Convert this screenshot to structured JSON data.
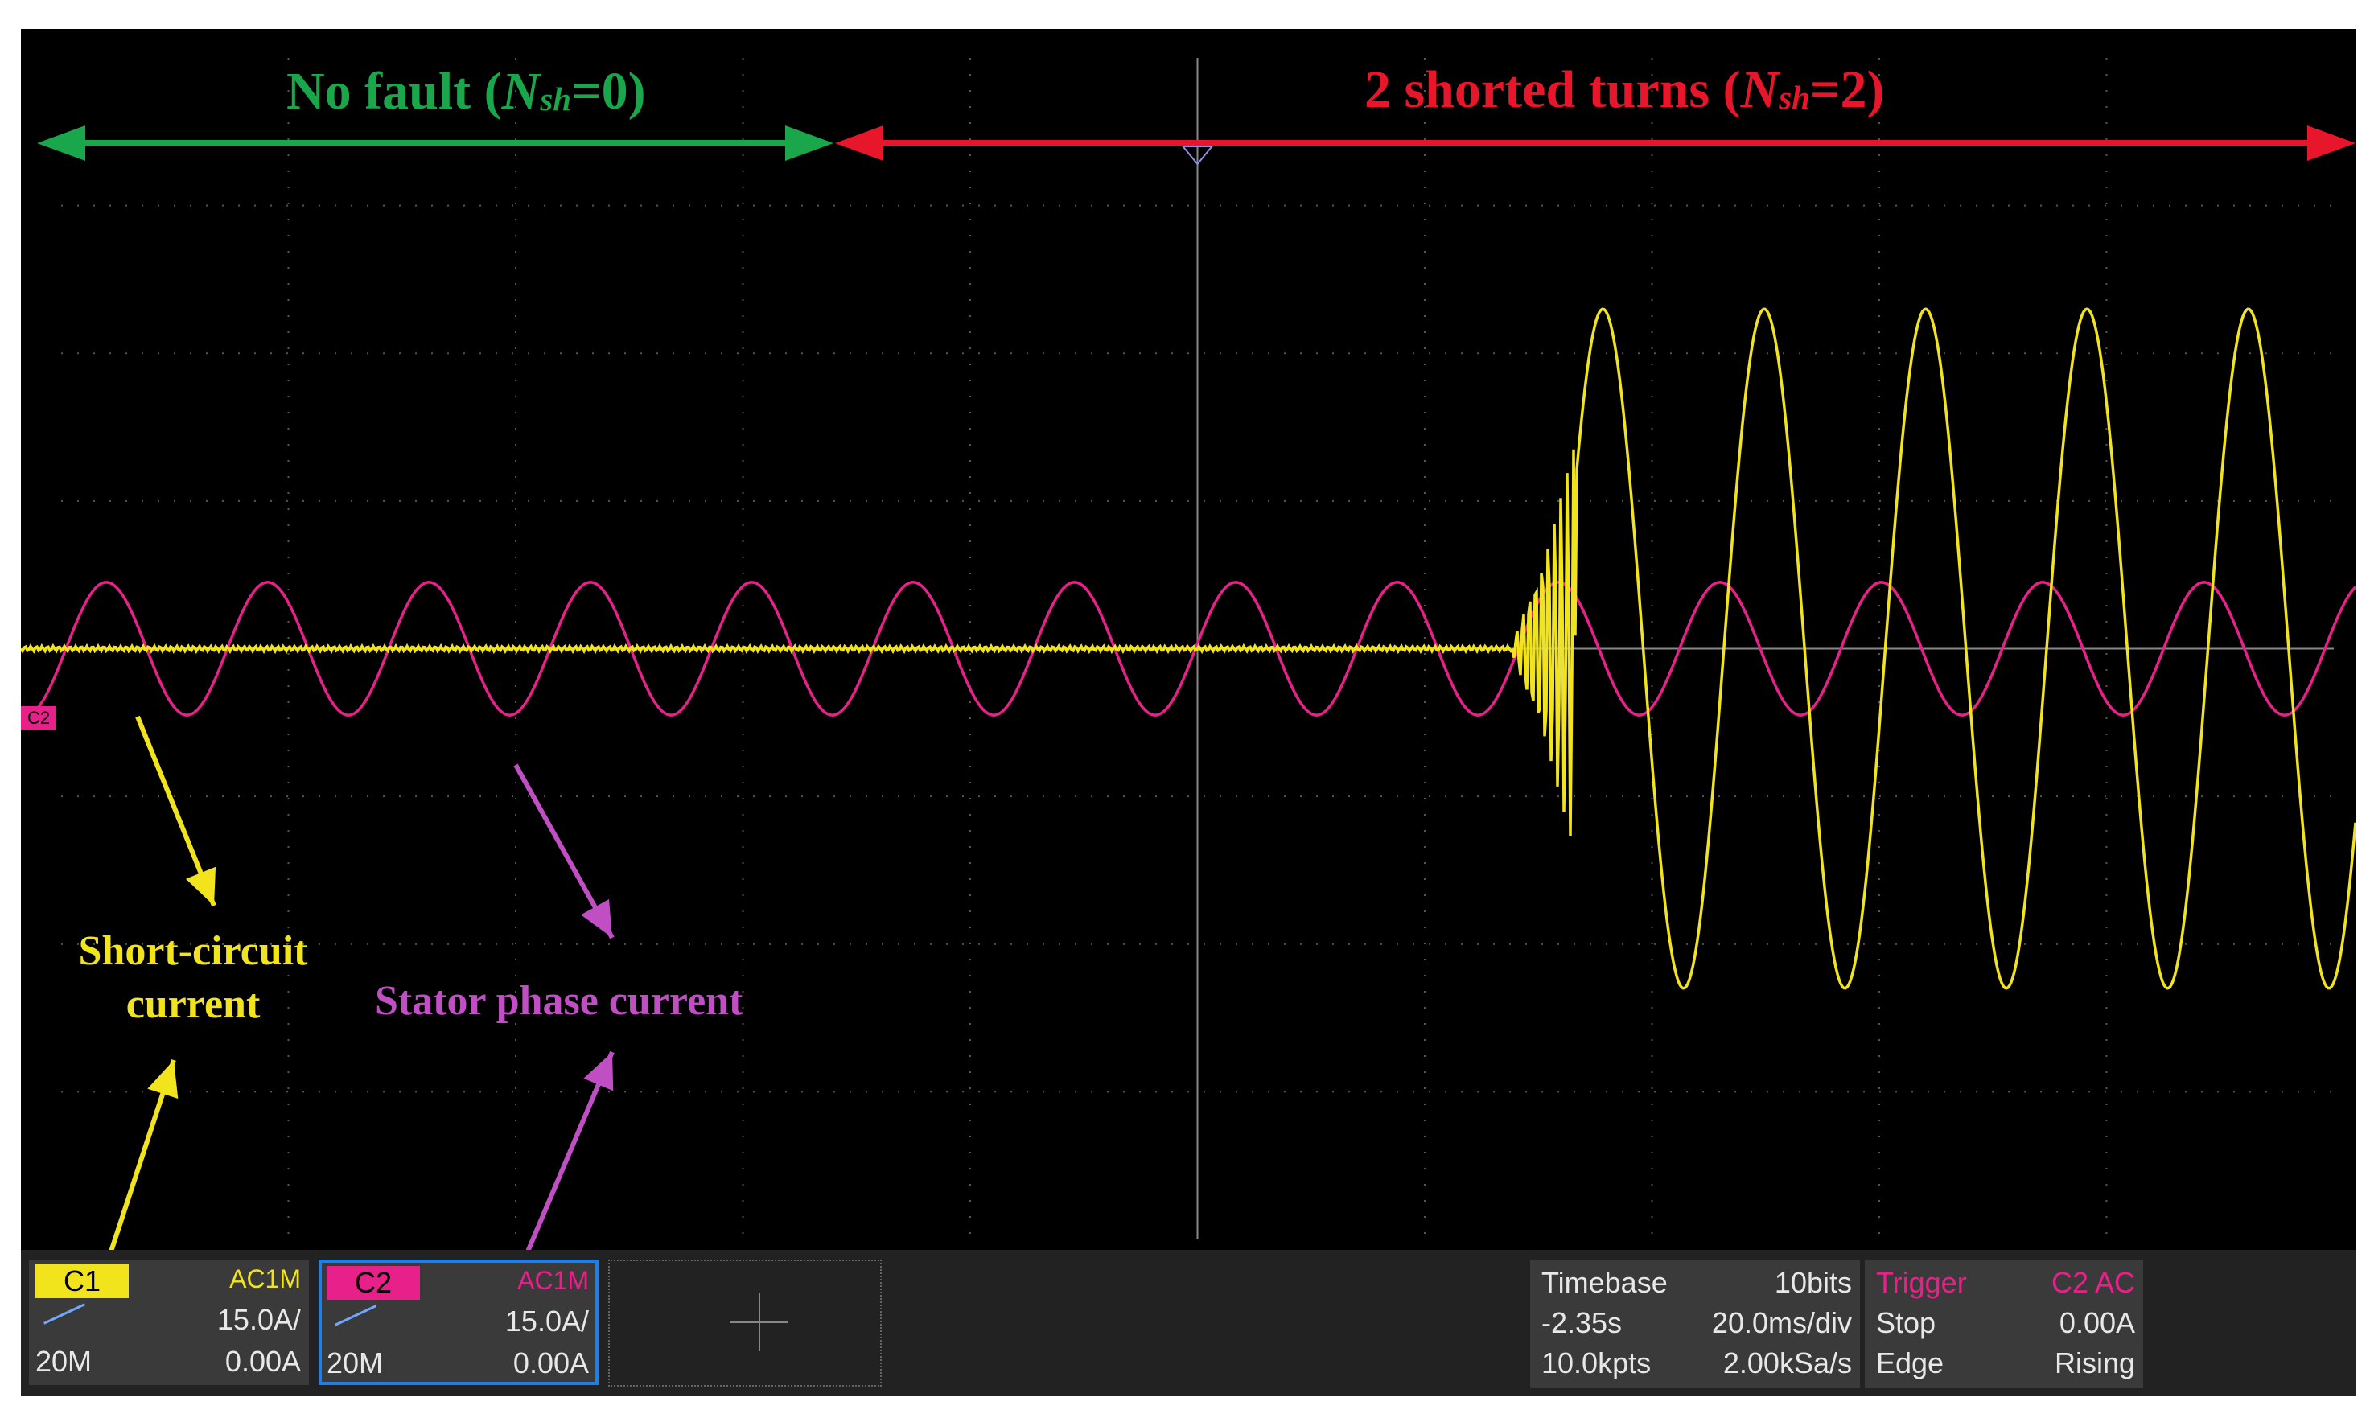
{
  "annotations": {
    "no_fault": {
      "prefix": "No fault (",
      "var": "N",
      "sub": "sh",
      "suffix": "=0)"
    },
    "shorted": {
      "prefix": "2 shorted turns (",
      "var": "N",
      "sub": "sh",
      "suffix": "=2)"
    },
    "short_circuit_line1": "Short-circuit",
    "short_circuit_line2": "current",
    "stator_phase": "Stator phase current"
  },
  "colors": {
    "no_fault": "#1aa64b",
    "shorted": "#e8162b",
    "ch1_trace": "#f2e41c",
    "ch2_trace": "#e8208a",
    "selected_border": "#1f7fe6"
  },
  "channel_marker": "C2",
  "channels": [
    {
      "tag": "C1",
      "coupling": "AC1M",
      "scale": "15.0A/",
      "bandwidth": "20M",
      "offset": "0.00A",
      "tag_color": "#f2e41c"
    },
    {
      "tag": "C2",
      "coupling": "AC1M",
      "scale": "15.0A/",
      "bandwidth": "20M",
      "offset": "0.00A",
      "tag_color": "#e8208a"
    }
  ],
  "add_channel_icon": "plus-icon",
  "timebase": {
    "title": "Timebase",
    "bits": "10bits",
    "delay": "-2.35s",
    "scale": "20.0ms/div",
    "points": "10.0kpts",
    "rate": "2.00kSa/s"
  },
  "trigger": {
    "title": "Trigger",
    "source": "C2 AC",
    "state": "Stop",
    "level": "0.00A",
    "type": "Edge",
    "slope": "Rising"
  },
  "traces": {
    "ch2_period_ms": 20,
    "ch1_fault_period_ms": 20,
    "fault_onset_div": 6.5,
    "ch2_amplitude_div": 0.45,
    "ch1_fault_amplitude_div": 2.3
  }
}
